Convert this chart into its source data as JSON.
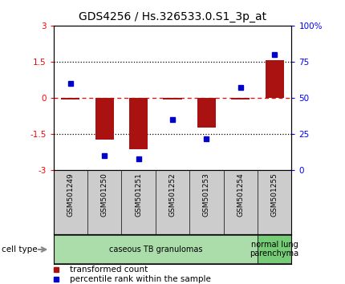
{
  "title": "GDS4256 / Hs.326533.0.S1_3p_at",
  "samples": [
    "GSM501249",
    "GSM501250",
    "GSM501251",
    "GSM501252",
    "GSM501253",
    "GSM501254",
    "GSM501255"
  ],
  "transformed_count": [
    -0.05,
    -1.72,
    -2.12,
    -0.06,
    -1.22,
    -0.07,
    1.55
  ],
  "percentile_rank": [
    60,
    10,
    8,
    35,
    22,
    57,
    80
  ],
  "bar_color": "#AA1111",
  "dot_color": "#0000CC",
  "ylim_left": [
    -3,
    3
  ],
  "ylim_right": [
    0,
    100
  ],
  "yticks_left": [
    -3,
    -1.5,
    0,
    1.5,
    3
  ],
  "yticks_right": [
    0,
    25,
    50,
    75,
    100
  ],
  "yticklabels_left": [
    "-3",
    "-1.5",
    "0",
    "1.5",
    "3"
  ],
  "yticklabels_right": [
    "0",
    "25",
    "50",
    "75",
    "100%"
  ],
  "cell_type_groups": [
    {
      "label": "caseous TB granulomas",
      "start": 0,
      "end": 5,
      "color": "#AADDAA"
    },
    {
      "label": "normal lung\nparenchyma",
      "start": 6,
      "end": 6,
      "color": "#77CC77"
    }
  ],
  "cell_type_label": "cell type",
  "legend_items": [
    {
      "color": "#AA1111",
      "label": "transformed count"
    },
    {
      "color": "#0000CC",
      "label": "percentile rank within the sample"
    }
  ],
  "bar_width": 0.55,
  "background_color": "#ffffff",
  "title_fontsize": 10,
  "tick_fontsize": 7.5,
  "sample_fontsize": 6.5,
  "legend_fontsize": 7.5
}
